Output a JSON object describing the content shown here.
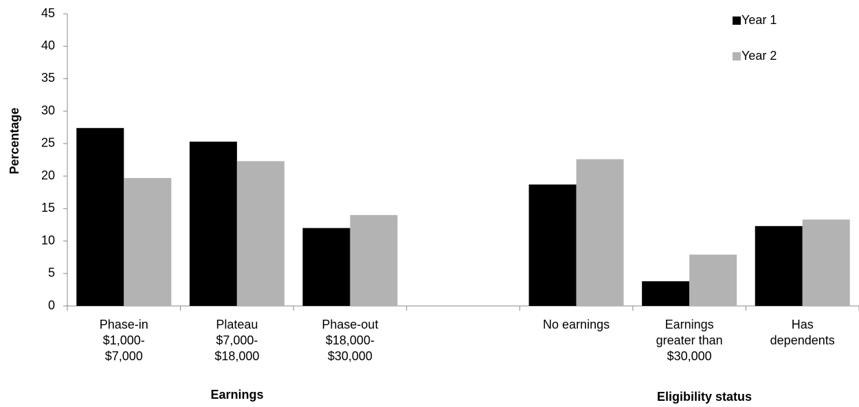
{
  "chart_data": {
    "type": "bar",
    "y_label": "Percentage",
    "annotations": [
      "Earnings",
      "Eligibility status"
    ],
    "categories": [
      "Phase-in\n$1,000-\n$7,000",
      "Plateau\n$7,000-\n$18,000",
      "Phase-out\n$18,000-\n$30,000",
      null,
      "No earnings",
      "Earnings\ngreater than\n$30,000",
      "Has\ndependents"
    ],
    "series": [
      {
        "name": "Year 1",
        "color": "#000000",
        "values": [
          27.4,
          25.3,
          12.0,
          null,
          18.7,
          3.8,
          12.3
        ]
      },
      {
        "name": "Year 2",
        "color": "#b3b3b3",
        "values": [
          19.7,
          22.3,
          14.0,
          null,
          22.6,
          7.9,
          13.3
        ]
      }
    ],
    "ylim": [
      0,
      45
    ],
    "yticks": [
      0,
      5,
      10,
      15,
      20,
      25,
      30,
      35,
      40,
      45
    ],
    "legend": "top-right"
  }
}
